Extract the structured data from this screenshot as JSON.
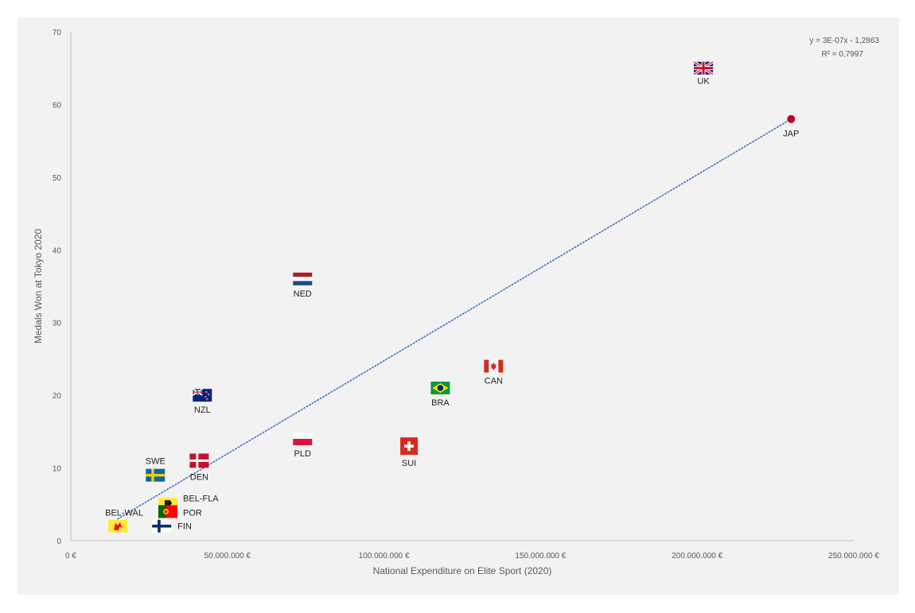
{
  "chart_data": {
    "type": "scatter",
    "title": "",
    "xlabel": "National Expenditure on Elite Sport (2020)",
    "ylabel": "Medals Won at Tokyo 2020",
    "xlim": [
      0,
      250000000
    ],
    "ylim": [
      0,
      70
    ],
    "x_ticks": [
      0,
      50000000,
      100000000,
      150000000,
      200000000,
      250000000
    ],
    "x_tick_labels": [
      "0 €",
      "50.000.000 €",
      "100.000.000 €",
      "150.000.000 €",
      "200.000.000 €",
      "250.000.000 €"
    ],
    "y_ticks": [
      0,
      10,
      20,
      30,
      40,
      50,
      60,
      70
    ],
    "y_tick_labels": [
      "0",
      "10",
      "20",
      "30",
      "40",
      "50",
      "60",
      "70"
    ],
    "grid": false,
    "points": [
      {
        "label": "UK",
        "x": 202000000,
        "y": 65,
        "flag": "uk-flag"
      },
      {
        "label": "JAP",
        "x": 230000000,
        "y": 58,
        "flag": "japan-flag"
      },
      {
        "label": "NED",
        "x": 74000000,
        "y": 36,
        "flag": "netherlands-flag"
      },
      {
        "label": "CAN",
        "x": 135000000,
        "y": 24,
        "flag": "canada-flag"
      },
      {
        "label": "BRA",
        "x": 118000000,
        "y": 21,
        "flag": "brazil-flag"
      },
      {
        "label": "NZL",
        "x": 42000000,
        "y": 20,
        "flag": "new-zealand-flag"
      },
      {
        "label": "PLD",
        "x": 74000000,
        "y": 14,
        "flag": "poland-flag"
      },
      {
        "label": "SUI",
        "x": 108000000,
        "y": 13,
        "flag": "switzerland-flag"
      },
      {
        "label": "DEN",
        "x": 41000000,
        "y": 11,
        "flag": "denmark-flag"
      },
      {
        "label": "SWE",
        "x": 27000000,
        "y": 9,
        "flag": "sweden-flag"
      },
      {
        "label": "BEL-FLA",
        "x": 31000000,
        "y": 5,
        "flag": "flanders-flag"
      },
      {
        "label": "POR",
        "x": 31000000,
        "y": 4,
        "flag": "portugal-flag"
      },
      {
        "label": "BEL-WAL",
        "x": 15000000,
        "y": 2,
        "flag": "wallonia-flag"
      },
      {
        "label": "FIN",
        "x": 29000000,
        "y": 2,
        "flag": "finland-flag"
      }
    ],
    "trendline": {
      "type": "linear",
      "x": [
        15000000,
        230000000
      ],
      "y": [
        3,
        58
      ],
      "color": "#4472c4",
      "style": "dotted",
      "equation": "y = 3E-07x - 1,2863",
      "r_squared": "R² = 0,7997"
    },
    "colors": {
      "background": "#f2f2f2",
      "axis": "#bfbfbf",
      "trendline": "#4472c4"
    }
  }
}
